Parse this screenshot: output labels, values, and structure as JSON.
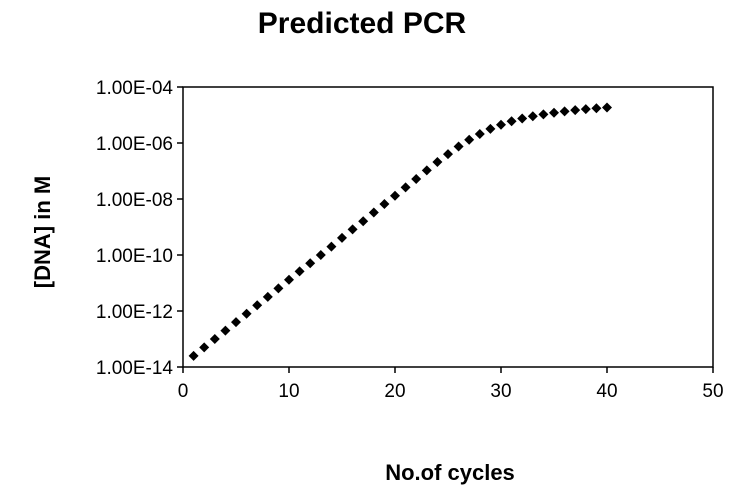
{
  "chart_data": {
    "type": "scatter",
    "title": "Predicted PCR",
    "xlabel": "No.of cycles",
    "ylabel": "[DNA] in M",
    "xlim": [
      0,
      50
    ],
    "ylim": [
      1e-14,
      0.0001
    ],
    "yscale": "log",
    "grid": false,
    "legend": "none",
    "marker_color": "#000000",
    "marker": "diamond",
    "x_ticks": [
      {
        "value": 0,
        "label": "0"
      },
      {
        "value": 10,
        "label": "10"
      },
      {
        "value": 20,
        "label": "20"
      },
      {
        "value": 30,
        "label": "30"
      },
      {
        "value": 40,
        "label": "40"
      },
      {
        "value": 50,
        "label": "50"
      }
    ],
    "y_ticks": [
      {
        "value": 1e-14,
        "label": "1.00E-14"
      },
      {
        "value": 1e-12,
        "label": "1.00E-12"
      },
      {
        "value": 1e-10,
        "label": "1.00E-10"
      },
      {
        "value": 1e-08,
        "label": "1.00E-08"
      },
      {
        "value": 1e-06,
        "label": "1.00E-06"
      },
      {
        "value": 0.0001,
        "label": "1.00E-04"
      }
    ],
    "series": [
      {
        "x": [
          1,
          2,
          3,
          4,
          5,
          6,
          7,
          8,
          9,
          10,
          11,
          12,
          13,
          14,
          15,
          16,
          17,
          18,
          19,
          20,
          21,
          22,
          23,
          24,
          25,
          26,
          27,
          28,
          29,
          30,
          31,
          32,
          33,
          34,
          35,
          36,
          37,
          38,
          39,
          40
        ],
        "y": [
          2.5e-14,
          5e-14,
          1e-13,
          2e-13,
          4e-13,
          8e-13,
          1.6e-12,
          3.2e-12,
          6.4e-12,
          1.3e-11,
          2.6e-11,
          5.1e-11,
          1e-10,
          2e-10,
          4.1e-10,
          8.2e-10,
          1.6e-09,
          3.3e-09,
          6.6e-09,
          1.3e-08,
          2.6e-08,
          5.2e-08,
          1.05e-07,
          2.1e-07,
          4e-07,
          7.5e-07,
          1.3e-06,
          2.1e-06,
          3.2e-06,
          4.5e-06,
          6e-06,
          7.5e-06,
          9e-06,
          1.05e-05,
          1.2e-05,
          1.35e-05,
          1.5e-05,
          1.62e-05,
          1.74e-05,
          1.85e-05
        ]
      }
    ]
  }
}
